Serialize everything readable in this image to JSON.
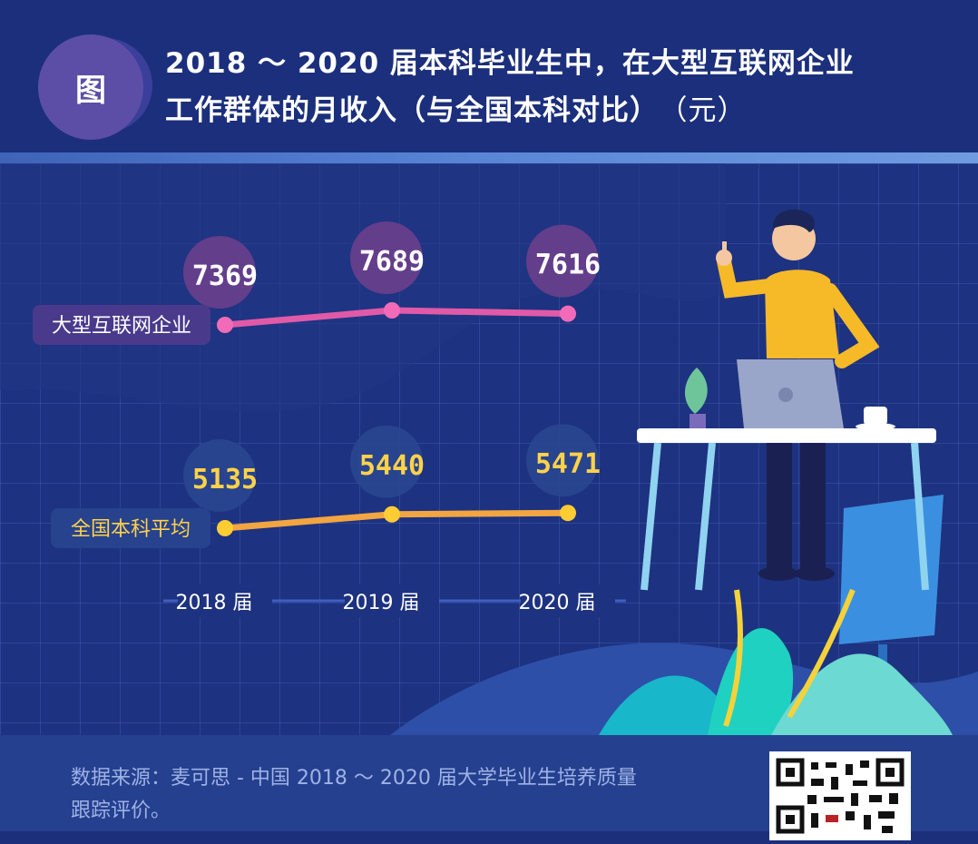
{
  "header": {
    "badge_label": "图",
    "title_line1": "2018 ～ 2020 届本科毕业生中，在大型互联网企业",
    "title_line2": "工作群体的月收入（与全国本科对比）",
    "unit": "（元）"
  },
  "footer": {
    "source_line1": "数据来源：麦可思 - 中国 2018 ～ 2020 届大学毕业生培养质量",
    "source_line2": "跟踪评价。"
  },
  "colors": {
    "background": "#1d3280",
    "internet_series": "#e05aa8",
    "national_series": "#f2a540",
    "internet_value_bubble": "#6a3f8c",
    "national_value_bubble": "#2a468f",
    "value_text_internet": "#ffffff",
    "value_text_national": "#ffd24a"
  },
  "chart_data": {
    "type": "line",
    "categories": [
      "2018 届",
      "2019 届",
      "2020 届"
    ],
    "series": [
      {
        "name": "大型互联网企业",
        "values": [
          7369,
          7689,
          7616
        ],
        "color": "#e05aa8"
      },
      {
        "name": "全国本科平均",
        "values": [
          5135,
          5440,
          5471
        ],
        "color": "#f2a540"
      }
    ],
    "title": "2018 ～ 2020 届本科毕业生中，在大型互联网企业工作群体的月收入（与全国本科对比）",
    "ylabel": "（元）",
    "legend": "inline-left",
    "grid": true
  }
}
